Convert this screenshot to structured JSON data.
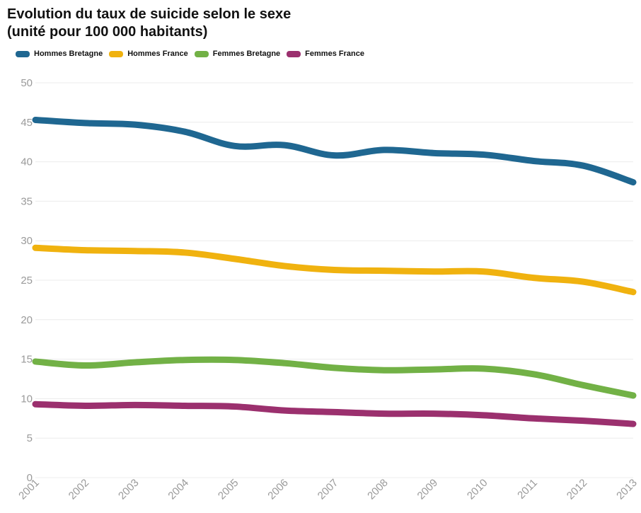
{
  "header": {
    "title_line1": "Evolution du taux de suicide selon le sexe",
    "title_line2": "(unité pour 100 000 habitants)"
  },
  "chart_data": {
    "type": "line",
    "title": "Evolution du taux de suicide selon le sexe (unité pour 100 000 habitants)",
    "xlabel": "",
    "ylabel": "",
    "x": [
      "2001",
      "2002",
      "2003",
      "2004",
      "2005",
      "2006",
      "2007",
      "2008",
      "2009",
      "2010",
      "2011",
      "2012",
      "2013"
    ],
    "ylim": [
      0,
      50
    ],
    "yticks": [
      "0",
      "5",
      "10",
      "15",
      "20",
      "25",
      "30",
      "35",
      "40",
      "45",
      "50"
    ],
    "grid": true,
    "legend_position": "top-left",
    "series": [
      {
        "name": "Hommes Bretagne",
        "color": "#1f6791",
        "values": [
          45.3,
          44.9,
          44.7,
          43.8,
          42.0,
          42.1,
          40.8,
          41.5,
          41.1,
          40.9,
          40.1,
          39.5,
          37.4
        ]
      },
      {
        "name": "Hommes France",
        "color": "#f0b20f",
        "values": [
          29.1,
          28.8,
          28.7,
          28.5,
          27.7,
          26.8,
          26.3,
          26.2,
          26.1,
          26.1,
          25.3,
          24.8,
          23.5
        ]
      },
      {
        "name": "Femmes Bretagne",
        "color": "#72b146",
        "values": [
          14.7,
          14.2,
          14.6,
          14.9,
          14.9,
          14.5,
          13.9,
          13.6,
          13.7,
          13.8,
          13.1,
          11.7,
          10.4
        ]
      },
      {
        "name": "Femmes France",
        "color": "#9b306e",
        "values": [
          9.3,
          9.1,
          9.2,
          9.1,
          9.0,
          8.5,
          8.3,
          8.1,
          8.1,
          7.9,
          7.5,
          7.2,
          6.8
        ]
      }
    ]
  }
}
